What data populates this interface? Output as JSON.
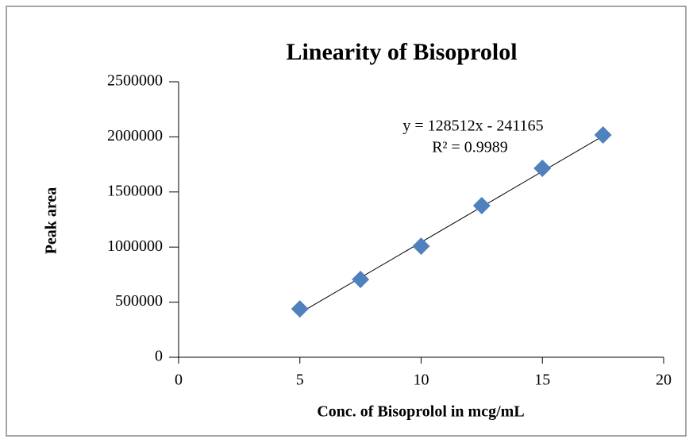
{
  "chart_data": {
    "type": "scatter",
    "title": "Linearity of Bisoprolol",
    "x_label": "Conc. of Bisoprolol in mcg/mL",
    "y_label": "Peak area",
    "x": [
      5,
      7.5,
      10,
      12.5,
      15,
      17.5
    ],
    "series": [
      {
        "color": "#4f81bd",
        "values": [
          439000,
          706000,
          1008000,
          1376000,
          1715000,
          2017000
        ]
      }
    ],
    "xlim": [
      0,
      20
    ],
    "xticks": [
      0,
      5,
      10,
      15,
      20
    ],
    "ylim": [
      0,
      2500000
    ],
    "yticks": [
      0,
      500000,
      1000000,
      1500000,
      2000000,
      2500000
    ],
    "trendline": {
      "slope": 128512,
      "intercept": -241165,
      "label": "y = 128512x - 241165",
      "r2": 0.9989,
      "r2_label": "R² = 0.9989"
    }
  }
}
